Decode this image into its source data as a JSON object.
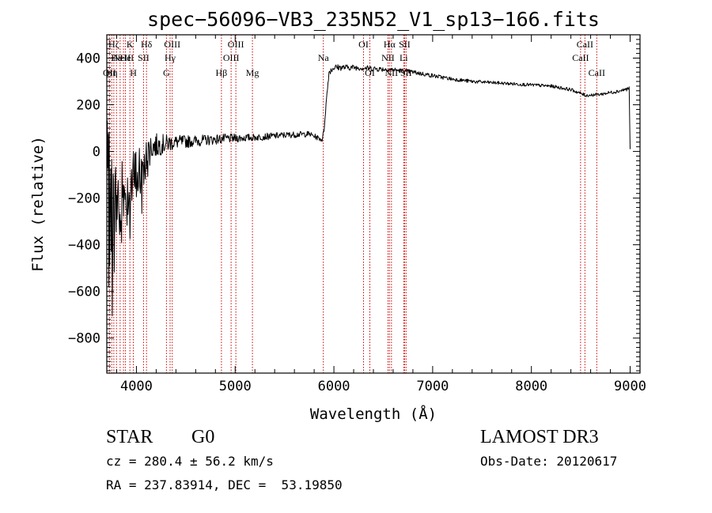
{
  "chart_data": {
    "type": "line",
    "title": "spec−56096−VB3_235N52_V1_sp13−166.fits",
    "xlabel": "Wavelength (Å)",
    "ylabel": "Flux (relative)",
    "xlim": [
      3700,
      9100
    ],
    "ylim": [
      -950,
      500
    ],
    "xticks": [
      {
        "value": 4000,
        "label": "4000"
      },
      {
        "value": 5000,
        "label": "5000"
      },
      {
        "value": 6000,
        "label": "6000"
      },
      {
        "value": 7000,
        "label": "7000"
      },
      {
        "value": 8000,
        "label": "8000"
      },
      {
        "value": 9000,
        "label": "9000"
      }
    ],
    "yticks": [
      {
        "value": 400,
        "label": "400"
      },
      {
        "value": 200,
        "label": "200"
      },
      {
        "value": 0,
        "label": "0"
      },
      {
        "value": -200,
        "label": "−200"
      },
      {
        "value": -400,
        "label": "−400"
      },
      {
        "value": -600,
        "label": "−600"
      },
      {
        "value": -800,
        "label": "−800"
      }
    ],
    "spectrum": {
      "name": "flux",
      "noise_seed": 7,
      "anchors": [
        {
          "x": 3700,
          "y": -50,
          "noise": 200
        },
        {
          "x": 3760,
          "y": -250,
          "noise": 240
        },
        {
          "x": 3820,
          "y": -200,
          "noise": 180
        },
        {
          "x": 3900,
          "y": -180,
          "noise": 160
        },
        {
          "x": 3980,
          "y": -120,
          "noise": 140
        },
        {
          "x": 4050,
          "y": -80,
          "noise": 120
        },
        {
          "x": 4100,
          "y": -20,
          "noise": 90
        },
        {
          "x": 4150,
          "y": 20,
          "noise": 60
        },
        {
          "x": 4250,
          "y": 30,
          "noise": 45
        },
        {
          "x": 4400,
          "y": 40,
          "noise": 30
        },
        {
          "x": 4600,
          "y": 45,
          "noise": 25
        },
        {
          "x": 4900,
          "y": 55,
          "noise": 20
        },
        {
          "x": 5200,
          "y": 60,
          "noise": 15
        },
        {
          "x": 5500,
          "y": 70,
          "noise": 14
        },
        {
          "x": 5750,
          "y": 75,
          "noise": 12
        },
        {
          "x": 5880,
          "y": 50,
          "noise": 10
        },
        {
          "x": 5900,
          "y": 90,
          "noise": 10
        },
        {
          "x": 5920,
          "y": 200,
          "noise": 10
        },
        {
          "x": 5950,
          "y": 340,
          "noise": 14
        },
        {
          "x": 6000,
          "y": 360,
          "noise": 14
        },
        {
          "x": 6200,
          "y": 360,
          "noise": 12
        },
        {
          "x": 6400,
          "y": 355,
          "noise": 12
        },
        {
          "x": 6600,
          "y": 350,
          "noise": 10
        },
        {
          "x": 6800,
          "y": 340,
          "noise": 10
        },
        {
          "x": 7000,
          "y": 325,
          "noise": 9
        },
        {
          "x": 7200,
          "y": 310,
          "noise": 8
        },
        {
          "x": 7400,
          "y": 300,
          "noise": 8
        },
        {
          "x": 7600,
          "y": 295,
          "noise": 7
        },
        {
          "x": 7800,
          "y": 290,
          "noise": 7
        },
        {
          "x": 8000,
          "y": 285,
          "noise": 7
        },
        {
          "x": 8200,
          "y": 280,
          "noise": 7
        },
        {
          "x": 8400,
          "y": 265,
          "noise": 7
        },
        {
          "x": 8550,
          "y": 240,
          "noise": 7
        },
        {
          "x": 8700,
          "y": 245,
          "noise": 7
        },
        {
          "x": 8900,
          "y": 260,
          "noise": 8
        },
        {
          "x": 8990,
          "y": 270,
          "noise": 8
        },
        {
          "x": 9000,
          "y": 10,
          "noise": 0
        }
      ]
    },
    "lines": [
      {
        "wavelength": 3727,
        "label": "OII",
        "row": 3
      },
      {
        "wavelength": 3750,
        "label": "Hη",
        "row": 3
      },
      {
        "wavelength": 3771,
        "label": "Hζ",
        "row": 1
      },
      {
        "wavelength": 3798,
        "label": "Hε",
        "row": 2
      },
      {
        "wavelength": 3835,
        "label": "",
        "row": 0
      },
      {
        "wavelength": 3869,
        "label": "NeIII",
        "row": 2
      },
      {
        "wavelength": 3889,
        "label": "He",
        "row": 2
      },
      {
        "wavelength": 3934,
        "label": "K",
        "row": 1
      },
      {
        "wavelength": 3969,
        "label": "H",
        "row": 3
      },
      {
        "wavelength": 4072,
        "label": "SII",
        "row": 2
      },
      {
        "wavelength": 4102,
        "label": "Hδ",
        "row": 1
      },
      {
        "wavelength": 4304,
        "label": "G",
        "row": 3
      },
      {
        "wavelength": 4341,
        "label": "Hγ",
        "row": 2
      },
      {
        "wavelength": 4363,
        "label": "OIII",
        "row": 1
      },
      {
        "wavelength": 4861,
        "label": "Hβ",
        "row": 3
      },
      {
        "wavelength": 4959,
        "label": "OIII",
        "row": 2
      },
      {
        "wavelength": 5007,
        "label": "OIII",
        "row": 1
      },
      {
        "wavelength": 5175,
        "label": "Mg",
        "row": 3
      },
      {
        "wavelength": 5893,
        "label": "Na",
        "row": 2
      },
      {
        "wavelength": 6300,
        "label": "OI",
        "row": 1
      },
      {
        "wavelength": 6364,
        "label": "OI",
        "row": 3
      },
      {
        "wavelength": 6548,
        "label": "NII",
        "row": 2
      },
      {
        "wavelength": 6563,
        "label": "Hα",
        "row": 1
      },
      {
        "wavelength": 6583,
        "label": "NII",
        "row": 3
      },
      {
        "wavelength": 6707,
        "label": "Li",
        "row": 2
      },
      {
        "wavelength": 6716,
        "label": "SII",
        "row": 1
      },
      {
        "wavelength": 6731,
        "label": "SII",
        "row": 3
      },
      {
        "wavelength": 8498,
        "label": "CaII",
        "row": 2
      },
      {
        "wavelength": 8542,
        "label": "CaII",
        "row": 1
      },
      {
        "wavelength": 8662,
        "label": "CaII",
        "row": 3
      }
    ]
  },
  "info": {
    "class": "STAR",
    "subclass": "G0",
    "survey": "LAMOST DR3",
    "redshift": "cz = 280.4 ± 56.2 km/s",
    "obs_date": "Obs-Date: 20120617",
    "coords": "RA = 237.83914, DEC =  53.19850"
  },
  "colors": {
    "spectrum": "#000000",
    "line_marker": "#cc0000",
    "axis": "#000000",
    "background": "#ffffff"
  }
}
